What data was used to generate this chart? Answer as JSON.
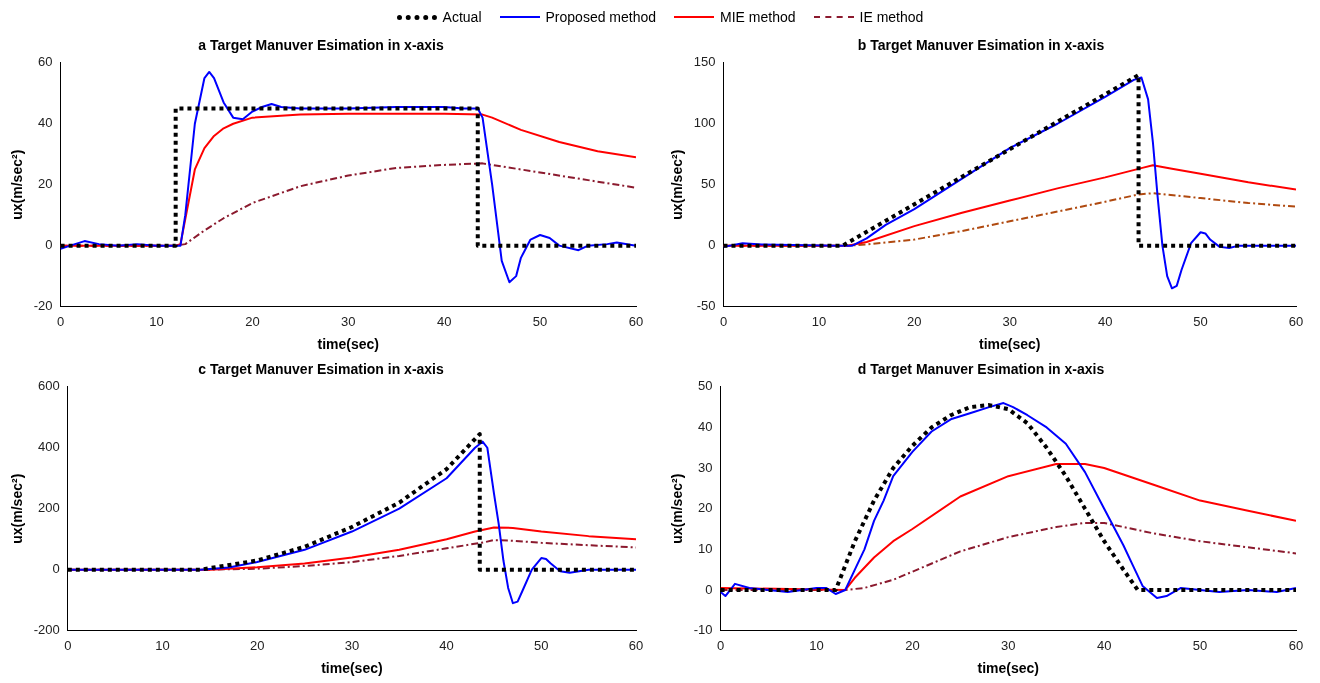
{
  "chart_data": [
    {
      "type": "line",
      "title": "a Target Manuver Esimation in x-axis",
      "xlabel": "time(sec)",
      "ylabel": "ux(m/sec²)",
      "legend": "top",
      "grid": false,
      "marker": "none",
      "xlim": [
        0,
        60
      ],
      "xticks": [
        0,
        10,
        20,
        30,
        40,
        50,
        60
      ],
      "ylim": [
        -20,
        60
      ],
      "yticks": [
        -20,
        0,
        20,
        40,
        60
      ],
      "series": [
        {
          "name": "Actual",
          "color": "#000000",
          "line_style": "dotted",
          "x": [
            0,
            12,
            12,
            43.5,
            43.5,
            60
          ],
          "values": [
            0,
            0,
            45,
            45,
            0,
            0
          ]
        },
        {
          "name": "Proposed method",
          "color": "#0000ff",
          "line_style": "solid",
          "x": [
            0,
            1,
            2.5,
            4,
            6,
            8,
            10,
            12,
            12.5,
            13,
            14,
            15,
            15.5,
            16,
            17,
            18,
            19,
            20,
            21,
            22,
            23,
            25,
            30,
            35,
            40,
            42,
            43.5,
            44,
            45,
            46,
            46.8,
            47.5,
            48,
            49,
            50,
            51,
            52,
            54,
            55,
            57,
            58,
            60
          ],
          "values": [
            -1,
            0,
            1.5,
            0.5,
            0,
            0.5,
            0,
            0,
            0,
            10,
            40,
            55,
            57,
            55,
            47,
            42,
            41.5,
            44,
            45.5,
            46.5,
            45.5,
            45,
            45,
            45.5,
            45.5,
            45,
            45,
            42,
            20,
            -5,
            -12,
            -10,
            -4,
            2,
            3.5,
            2.5,
            0,
            -1.5,
            0,
            0.5,
            1,
            0
          ]
        },
        {
          "name": "MIE method",
          "color": "#ff0000",
          "line_style": "solid",
          "x": [
            0,
            12,
            12.5,
            14,
            15,
            16,
            17,
            18,
            20,
            25,
            30,
            40,
            44,
            45,
            48,
            52,
            56,
            60
          ],
          "values": [
            0,
            0,
            0.5,
            25,
            32,
            36,
            38.5,
            40,
            42,
            43,
            43.3,
            43.3,
            43,
            42,
            38,
            34,
            31,
            29
          ]
        },
        {
          "name": "IE method",
          "color": "#8b1a2e",
          "line_style": "dashed",
          "x": [
            0,
            12,
            13,
            15,
            17,
            20,
            25,
            30,
            35,
            40,
            44,
            46,
            50,
            55,
            60
          ],
          "values": [
            0,
            0,
            0.5,
            5,
            9,
            14,
            19.5,
            23,
            25.5,
            26.5,
            27,
            26,
            24,
            21.5,
            19
          ]
        }
      ]
    },
    {
      "type": "line",
      "title": "b Target Manuver Esimation in x-axis",
      "xlabel": "time(sec)",
      "ylabel": "ux(m/sec²)",
      "grid": false,
      "marker": "none",
      "xlim": [
        0,
        60
      ],
      "xticks": [
        0,
        10,
        20,
        30,
        40,
        50,
        60
      ],
      "ylim": [
        -50,
        150
      ],
      "yticks": [
        -50,
        0,
        50,
        100,
        150
      ],
      "series": [
        {
          "color": "#000000",
          "line_style": "dotted",
          "x": [
            0,
            12.5,
            43.5,
            43.5,
            60
          ],
          "values": [
            0,
            0,
            140,
            0,
            0
          ]
        },
        {
          "color": "#0000ff",
          "line_style": "solid",
          "x": [
            0,
            2,
            4,
            12,
            13.5,
            15,
            17,
            20,
            25,
            30,
            35,
            40,
            43,
            43.8,
            44.5,
            45,
            45.5,
            46,
            46.5,
            47,
            47.5,
            48,
            49,
            50,
            50.5,
            51,
            52,
            53,
            54,
            60
          ],
          "values": [
            -1,
            2,
            1,
            0,
            0,
            6,
            17,
            30,
            55,
            80,
            100,
            122,
            136,
            138,
            120,
            85,
            40,
            0,
            -25,
            -35,
            -33,
            -20,
            2,
            11,
            10,
            5,
            -1,
            -2,
            0,
            0
          ]
        },
        {
          "color": "#ff0000",
          "line_style": "solid",
          "x": [
            0,
            13,
            15,
            20,
            25,
            30,
            35,
            40,
            44,
            45,
            47,
            50,
            55,
            60
          ],
          "values": [
            0,
            0,
            3,
            16,
            27,
            37,
            47,
            56,
            64,
            66,
            63,
            59,
            52,
            46
          ]
        },
        {
          "color": "#b04a10",
          "line_style": "dashed",
          "x": [
            0,
            13,
            15,
            20,
            25,
            30,
            35,
            40,
            43.5,
            45,
            50,
            55,
            60
          ],
          "values": [
            0,
            0,
            1,
            5,
            12,
            20,
            28,
            36,
            42,
            43,
            39,
            35,
            32
          ]
        }
      ]
    },
    {
      "type": "line",
      "title": "c Target Manuver Esimation in x-axis",
      "xlabel": "time(sec)",
      "ylabel": "ux(m/sec²)",
      "grid": false,
      "marker": "none",
      "xlim": [
        0,
        60
      ],
      "xticks": [
        0,
        10,
        20,
        30,
        40,
        50,
        60
      ],
      "ylim": [
        -200,
        600
      ],
      "yticks": [
        -200,
        0,
        200,
        400,
        600
      ],
      "series": [
        {
          "color": "#000000",
          "line_style": "dotted",
          "x": [
            0,
            14,
            15,
            20,
            25,
            30,
            35,
            40,
            43.5,
            43.5,
            60
          ],
          "values": [
            0,
            0,
            5,
            30,
            75,
            140,
            220,
            330,
            445,
            0,
            0
          ]
        },
        {
          "color": "#0000ff",
          "line_style": "solid",
          "x": [
            0,
            14,
            17,
            20,
            25,
            30,
            35,
            40,
            43,
            43.8,
            44.3,
            45,
            45.5,
            46,
            46.5,
            47,
            47.5,
            48,
            49,
            50,
            50.5,
            51,
            52,
            53,
            55,
            60
          ],
          "values": [
            0,
            0,
            7,
            25,
            65,
            125,
            200,
            300,
            400,
            420,
            400,
            250,
            150,
            30,
            -60,
            -110,
            -105,
            -70,
            0,
            38,
            35,
            20,
            -5,
            -10,
            0,
            0
          ]
        },
        {
          "color": "#ff0000",
          "line_style": "solid",
          "x": [
            0,
            15,
            20,
            25,
            30,
            35,
            40,
            43,
            45,
            47,
            50,
            55,
            60
          ],
          "values": [
            0,
            0,
            8,
            20,
            40,
            65,
            100,
            125,
            138,
            137,
            125,
            110,
            100
          ]
        },
        {
          "color": "#8b1a2e",
          "line_style": "dashed",
          "x": [
            0,
            15,
            20,
            25,
            30,
            35,
            40,
            44,
            45,
            47,
            50,
            55,
            60
          ],
          "values": [
            0,
            0,
            3,
            12,
            25,
            45,
            70,
            90,
            97,
            95,
            88,
            80,
            73
          ]
        }
      ]
    },
    {
      "type": "line",
      "title": "d Target Manuver Esimation in x-axis",
      "xlabel": "time(sec)",
      "ylabel": "ux(m/sec²)",
      "grid": false,
      "marker": "none",
      "xlim": [
        0,
        60
      ],
      "xticks": [
        0,
        10,
        20,
        30,
        40,
        50,
        60
      ],
      "ylim": [
        -10,
        50
      ],
      "yticks": [
        -10,
        0,
        10,
        20,
        30,
        40,
        50
      ],
      "series": [
        {
          "color": "#000000",
          "line_style": "dotted",
          "x": [
            0,
            12,
            14,
            16,
            18,
            20,
            22,
            24,
            26,
            28,
            30,
            32,
            34,
            36,
            38,
            40,
            42,
            43.5,
            60
          ],
          "values": [
            0,
            0,
            12,
            22,
            30,
            35.5,
            40,
            43,
            45,
            45.5,
            44.5,
            41,
            35,
            28,
            20,
            12,
            5,
            0,
            0
          ]
        },
        {
          "color": "#0000ff",
          "line_style": "solid",
          "x": [
            0,
            0.5,
            1.5,
            3,
            5,
            7,
            10,
            11,
            12,
            13,
            14,
            15,
            16,
            17,
            18,
            20,
            22,
            24,
            26,
            28,
            29.5,
            30.5,
            32,
            34,
            36,
            38,
            40,
            42,
            43,
            44,
            45.5,
            46.5,
            48,
            50,
            52,
            55,
            58,
            60
          ],
          "values": [
            -0.5,
            -1.5,
            1.5,
            0.5,
            0,
            -0.5,
            0.5,
            0.5,
            -1,
            0,
            5,
            10,
            17,
            22,
            28,
            34,
            39,
            42,
            43.5,
            45,
            46,
            45,
            43,
            40,
            36,
            29,
            20,
            11,
            6,
            1,
            -2,
            -1.5,
            0.5,
            0,
            -0.5,
            0,
            -0.5,
            0.5
          ]
        },
        {
          "color": "#ff0000",
          "line_style": "solid",
          "x": [
            0,
            13,
            14,
            16,
            18,
            20,
            25,
            30,
            35,
            38,
            40,
            45,
            50,
            55,
            60
          ],
          "values": [
            0.5,
            0,
            3,
            8,
            12,
            15,
            23,
            28,
            31,
            31,
            30,
            26,
            22,
            19.5,
            17
          ]
        },
        {
          "color": "#8b1a2e",
          "line_style": "dashed",
          "x": [
            0,
            13,
            15,
            18,
            20,
            25,
            30,
            35,
            38,
            40,
            45,
            50,
            55,
            60
          ],
          "values": [
            0,
            0,
            0.5,
            2.5,
            4.5,
            9.5,
            13,
            15.5,
            16.5,
            16.5,
            14,
            12,
            10.5,
            9
          ]
        }
      ]
    }
  ]
}
